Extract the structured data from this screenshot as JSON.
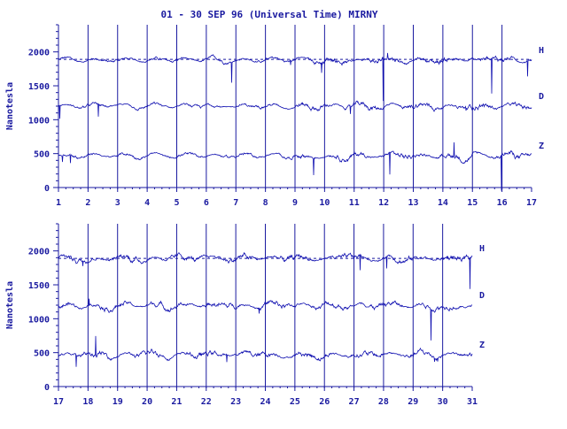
{
  "colors": {
    "ink": "#1a1aa0",
    "trace": "#1010b0",
    "background": "#ffffff"
  },
  "chart_data": [
    {
      "type": "line",
      "title": "01 - 30 SEP 96 (Universal Time) MIRNY",
      "ylabel": "Nanotesla",
      "xlabel": "",
      "ylim": [
        0,
        2400
      ],
      "y_ticks": [
        0,
        500,
        1000,
        1500,
        2000
      ],
      "x_ticks": [
        "1",
        "2",
        "3",
        "4",
        "5",
        "6",
        "7",
        "8",
        "9",
        "10",
        "11",
        "12",
        "13",
        "14",
        "15",
        "16",
        "17"
      ],
      "xlim": [
        1,
        17
      ],
      "grid": "vertical lines at each day",
      "series": [
        {
          "name": "H",
          "baseline": 1880,
          "reference_line": 1890
        },
        {
          "name": "D",
          "baseline": 1200
        },
        {
          "name": "Z",
          "baseline": 470
        }
      ]
    },
    {
      "type": "line",
      "title": "",
      "ylabel": "Nanotesla",
      "xlabel": "",
      "ylim": [
        0,
        2400
      ],
      "y_ticks": [
        0,
        500,
        1000,
        1500,
        2000
      ],
      "x_ticks": [
        "17",
        "18",
        "19",
        "20",
        "21",
        "22",
        "23",
        "24",
        "25",
        "26",
        "27",
        "28",
        "29",
        "30",
        "31"
      ],
      "xlim": [
        17,
        31
      ],
      "grid": "vertical lines at each day",
      "series": [
        {
          "name": "H",
          "baseline": 1890,
          "reference_line": 1890
        },
        {
          "name": "D",
          "baseline": 1200
        },
        {
          "name": "Z",
          "baseline": 470
        }
      ]
    }
  ]
}
